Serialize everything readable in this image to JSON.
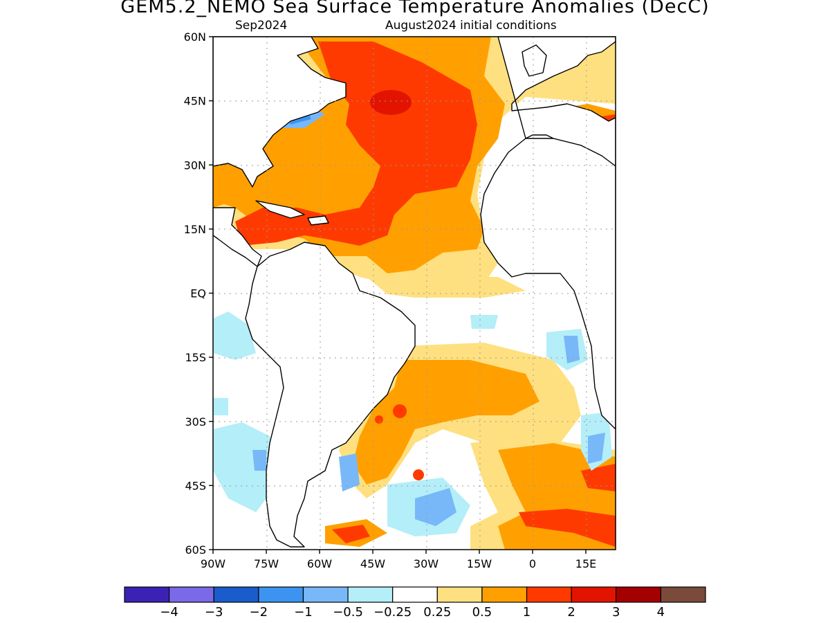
{
  "title": "GEM5.2_NEMO Sea Surface Temperature Anomalies (DecC)",
  "subtitle_left": "Sep2024",
  "subtitle_right": "August2024 initial conditions",
  "lat_ticks": [
    "60N",
    "45N",
    "30N",
    "15N",
    "EQ",
    "15S",
    "30S",
    "45S",
    "60S"
  ],
  "lon_ticks": [
    "90W",
    "75W",
    "60W",
    "45W",
    "30W",
    "15W",
    "0",
    "15E"
  ],
  "colorbar": {
    "colors": [
      "#3b22b4",
      "#7b6ae8",
      "#1a5ccc",
      "#3c94f0",
      "#78b8f8",
      "#b4eef8",
      "#ffffff",
      "#ffe080",
      "#ffa000",
      "#ff3a00",
      "#e21400",
      "#a50000",
      "#7a4a3a"
    ],
    "labels": [
      "−4",
      "−3",
      "−2",
      "−1",
      "−0.5",
      "−0.25",
      "0.25",
      "0.5",
      "1",
      "2",
      "3",
      "4"
    ]
  },
  "colors": {
    "land_outline": "#000000",
    "grid": "#9a9a9a"
  }
}
